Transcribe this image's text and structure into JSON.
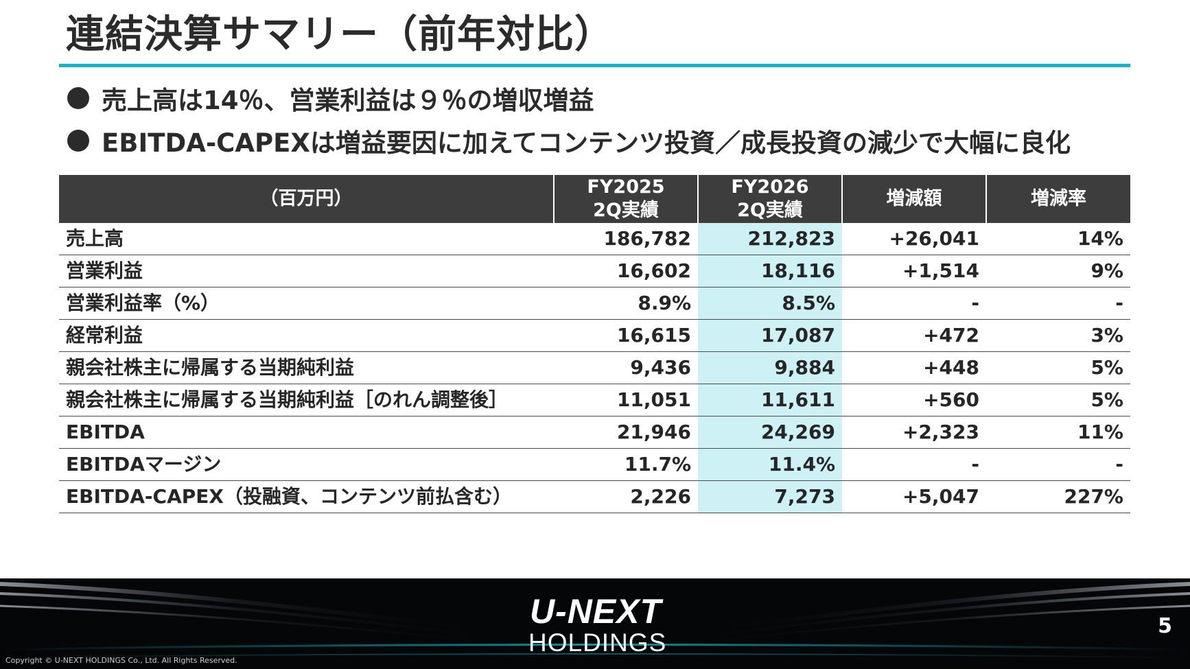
{
  "slide": {
    "title": "連結決算サマリー（前年対比）",
    "bullets": [
      "売上高は14％、営業利益は９％の増収増益",
      "EBITDA-CAPEXは増益要因に加えてコンテンツ投資／成長投資の減少で大幅に良化"
    ],
    "accent_color": "#14b3c8",
    "highlight_color": "#cdf1f4",
    "header_color": "#3d3d3d"
  },
  "table": {
    "headers": {
      "unit": "（百万円）",
      "fy2025_line1": "FY2025",
      "fy2025_line2": "2Q実績",
      "fy2026_line1": "FY2026",
      "fy2026_line2": "2Q実績",
      "change_amount": "増減額",
      "change_rate": "増減率"
    },
    "rows": [
      {
        "label": "売上高",
        "fy2025": "186,782",
        "fy2026": "212,823",
        "change": "+26,041",
        "rate": "14%"
      },
      {
        "label": "営業利益",
        "fy2025": "16,602",
        "fy2026": "18,116",
        "change": "+1,514",
        "rate": "9%"
      },
      {
        "label": "営業利益率（%）",
        "fy2025": "8.9%",
        "fy2026": "8.5%",
        "change": "-",
        "rate": "-"
      },
      {
        "label": "経常利益",
        "fy2025": "16,615",
        "fy2026": "17,087",
        "change": "+472",
        "rate": "3%"
      },
      {
        "label": "親会社株主に帰属する当期純利益",
        "fy2025": "9,436",
        "fy2026": "9,884",
        "change": "+448",
        "rate": "5%"
      },
      {
        "label": "親会社株主に帰属する当期純利益［のれん調整後］",
        "fy2025": "11,051",
        "fy2026": "11,611",
        "change": "+560",
        "rate": "5%"
      },
      {
        "label": "EBITDA",
        "fy2025": "21,946",
        "fy2026": "24,269",
        "change": "+2,323",
        "rate": "11%"
      },
      {
        "label": "EBITDAマージン",
        "fy2025": "11.7%",
        "fy2026": "11.4%",
        "change": "-",
        "rate": "-"
      },
      {
        "label": "EBITDA-CAPEX（投融資、コンテンツ前払含む）",
        "fy2025": "2,226",
        "fy2026": "7,273",
        "change": "+5,047",
        "rate": "227%"
      }
    ]
  },
  "footer": {
    "logo_line1": "U-NEXT",
    "logo_line2": "HOLDINGS",
    "page_number": "5",
    "copyright": "Copyright © U-NEXT HOLDINGS Co., Ltd. All Rights Reserved."
  }
}
